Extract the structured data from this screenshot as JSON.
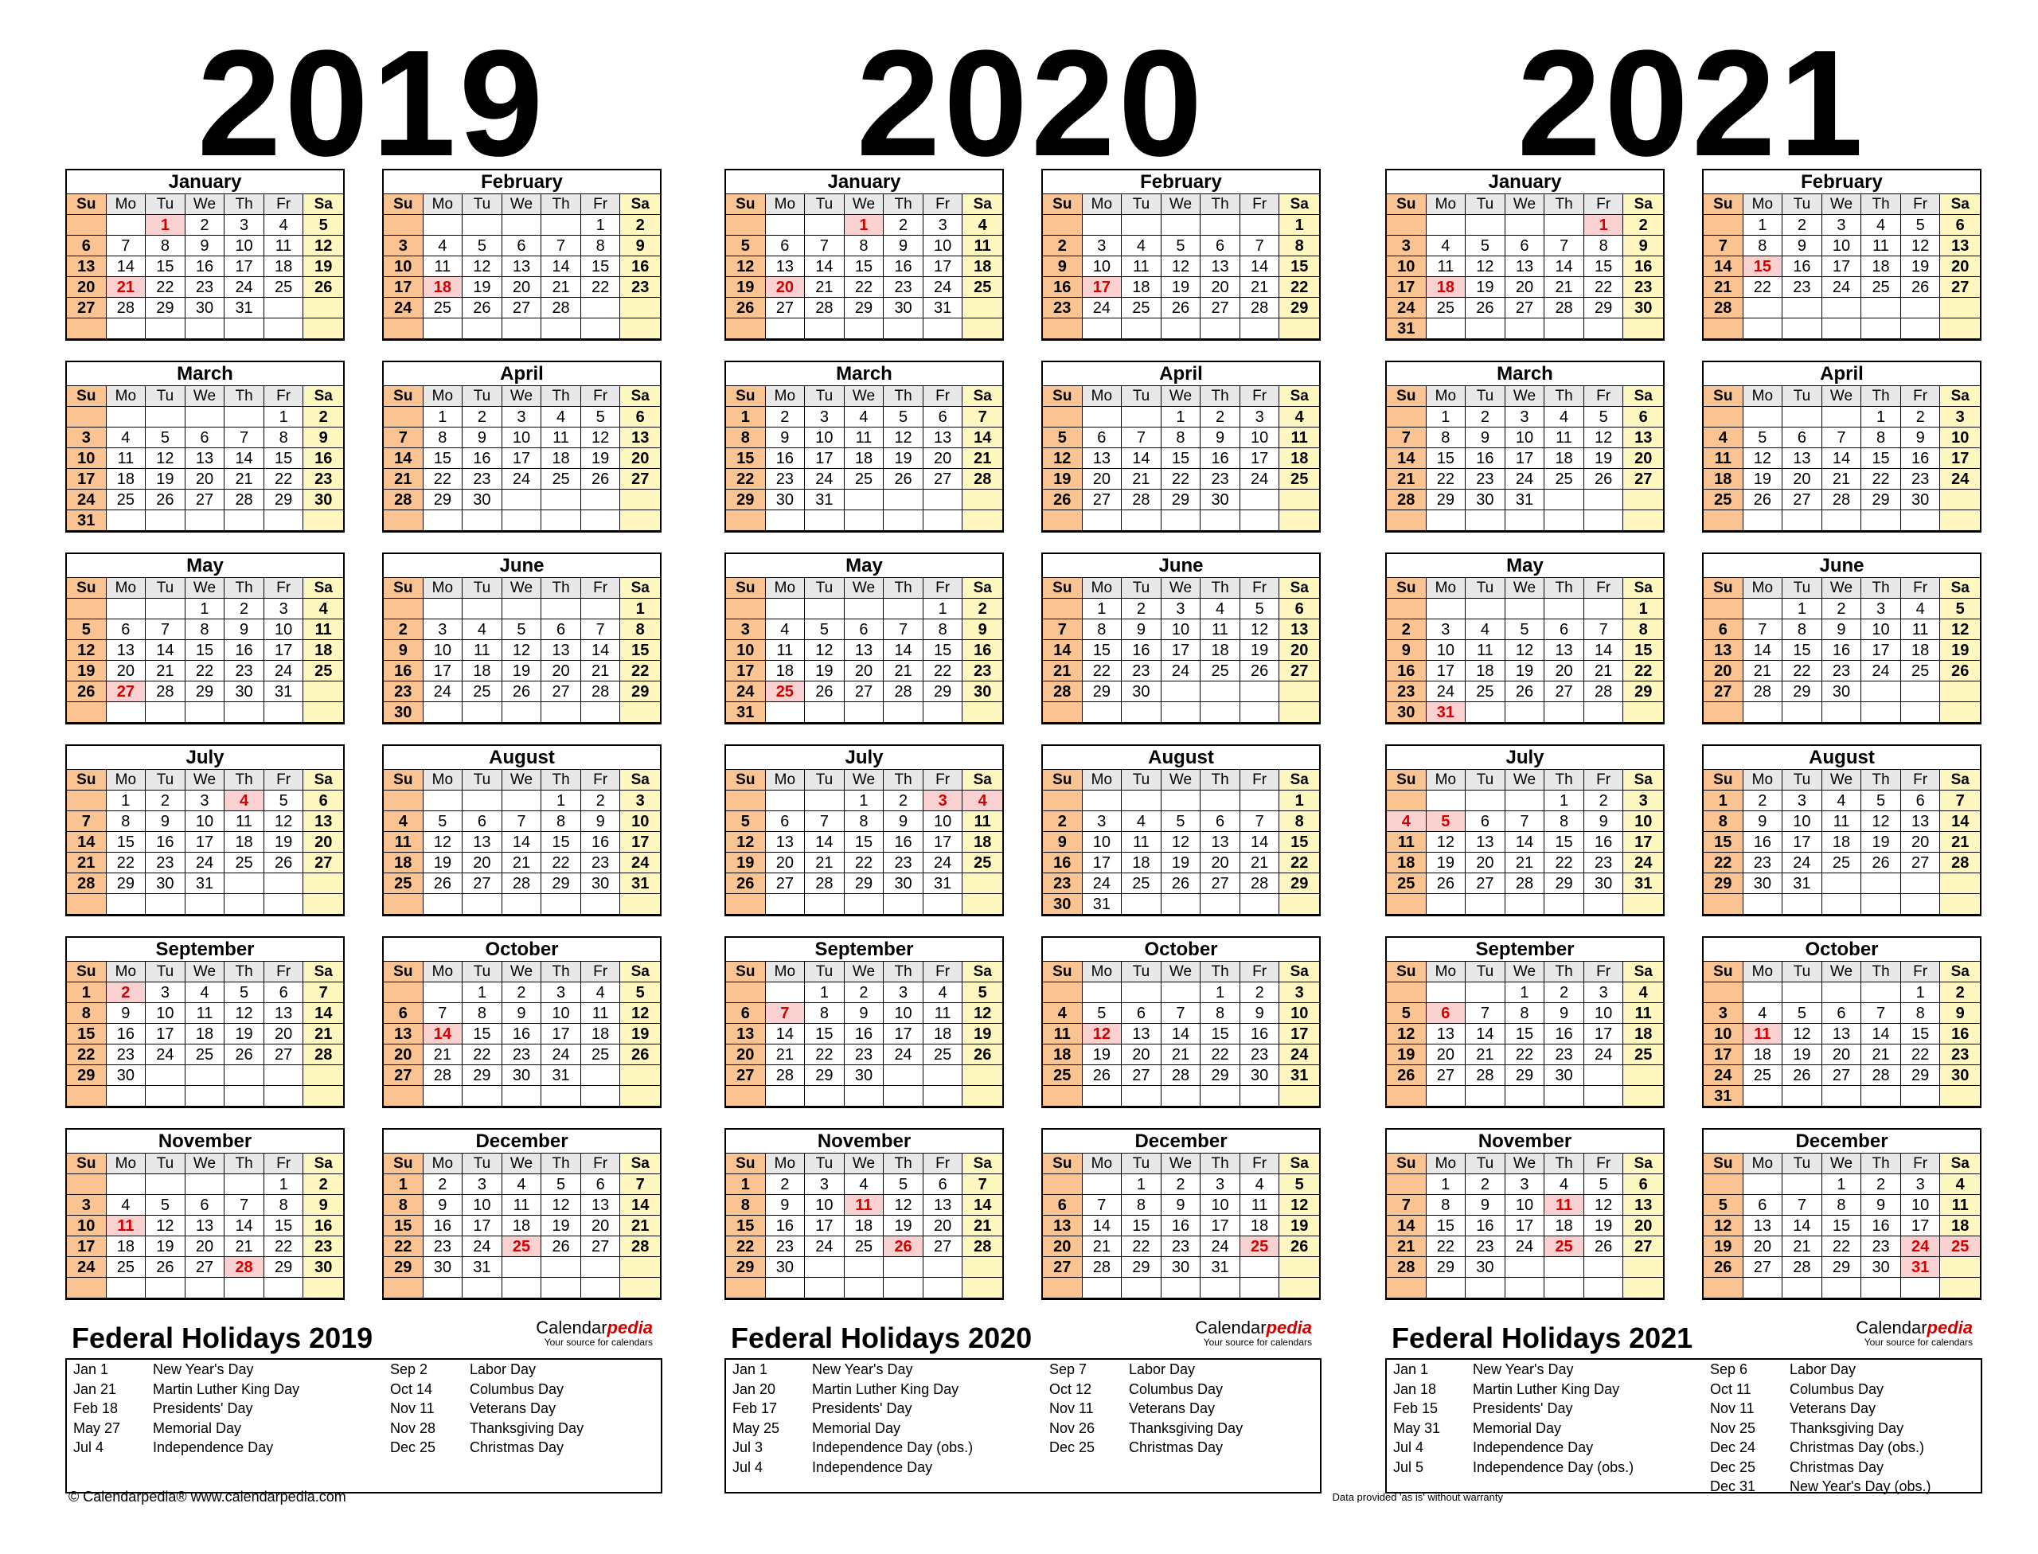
{
  "years": [
    {
      "year": "2019",
      "months": [
        {
          "name": "January",
          "start": 2,
          "days": 31,
          "holidays": [
            1,
            21
          ]
        },
        {
          "name": "February",
          "start": 5,
          "days": 28,
          "holidays": [
            18
          ]
        },
        {
          "name": "March",
          "start": 5,
          "days": 31,
          "holidays": []
        },
        {
          "name": "April",
          "start": 1,
          "days": 30,
          "holidays": []
        },
        {
          "name": "May",
          "start": 3,
          "days": 31,
          "holidays": [
            27
          ]
        },
        {
          "name": "June",
          "start": 6,
          "days": 30,
          "holidays": []
        },
        {
          "name": "July",
          "start": 1,
          "days": 31,
          "holidays": [
            4
          ]
        },
        {
          "name": "August",
          "start": 4,
          "days": 31,
          "holidays": []
        },
        {
          "name": "September",
          "start": 0,
          "days": 30,
          "holidays": [
            2
          ]
        },
        {
          "name": "October",
          "start": 2,
          "days": 31,
          "holidays": [
            14
          ]
        },
        {
          "name": "November",
          "start": 5,
          "days": 30,
          "holidays": [
            11,
            28
          ]
        },
        {
          "name": "December",
          "start": 0,
          "days": 31,
          "holidays": [
            25
          ]
        }
      ],
      "holiday_title": "Federal Holidays 2019",
      "holidays_left": [
        {
          "date": "Jan 1",
          "name": "New Year's Day"
        },
        {
          "date": "Jan 21",
          "name": "Martin Luther King Day"
        },
        {
          "date": "Feb 18",
          "name": "Presidents' Day"
        },
        {
          "date": "May 27",
          "name": "Memorial Day"
        },
        {
          "date": "Jul 4",
          "name": "Independence Day"
        }
      ],
      "holidays_right": [
        {
          "date": "Sep 2",
          "name": "Labor Day"
        },
        {
          "date": "Oct 14",
          "name": "Columbus Day"
        },
        {
          "date": "Nov 11",
          "name": "Veterans Day"
        },
        {
          "date": "Nov 28",
          "name": "Thanksgiving Day"
        },
        {
          "date": "Dec 25",
          "name": "Christmas Day"
        }
      ]
    },
    {
      "year": "2020",
      "months": [
        {
          "name": "January",
          "start": 3,
          "days": 31,
          "holidays": [
            1,
            20
          ]
        },
        {
          "name": "February",
          "start": 6,
          "days": 29,
          "holidays": [
            17
          ]
        },
        {
          "name": "March",
          "start": 0,
          "days": 31,
          "holidays": []
        },
        {
          "name": "April",
          "start": 3,
          "days": 30,
          "holidays": []
        },
        {
          "name": "May",
          "start": 5,
          "days": 31,
          "holidays": [
            25
          ]
        },
        {
          "name": "June",
          "start": 1,
          "days": 30,
          "holidays": []
        },
        {
          "name": "July",
          "start": 3,
          "days": 31,
          "holidays": [
            3,
            4
          ]
        },
        {
          "name": "August",
          "start": 6,
          "days": 31,
          "holidays": []
        },
        {
          "name": "September",
          "start": 2,
          "days": 30,
          "holidays": [
            7
          ]
        },
        {
          "name": "October",
          "start": 4,
          "days": 31,
          "holidays": [
            12
          ]
        },
        {
          "name": "November",
          "start": 0,
          "days": 30,
          "holidays": [
            11,
            26
          ]
        },
        {
          "name": "December",
          "start": 2,
          "days": 31,
          "holidays": [
            25
          ]
        }
      ],
      "holiday_title": "Federal Holidays 2020",
      "holidays_left": [
        {
          "date": "Jan 1",
          "name": "New Year's Day"
        },
        {
          "date": "Jan 20",
          "name": "Martin Luther King Day"
        },
        {
          "date": "Feb 17",
          "name": "Presidents' Day"
        },
        {
          "date": "May 25",
          "name": "Memorial Day"
        },
        {
          "date": "Jul 3",
          "name": "Independence Day (obs.)"
        },
        {
          "date": "Jul 4",
          "name": "Independence Day"
        }
      ],
      "holidays_right": [
        {
          "date": "Sep 7",
          "name": "Labor Day"
        },
        {
          "date": "Oct 12",
          "name": "Columbus Day"
        },
        {
          "date": "Nov 11",
          "name": "Veterans Day"
        },
        {
          "date": "Nov 26",
          "name": "Thanksgiving Day"
        },
        {
          "date": "Dec 25",
          "name": "Christmas Day"
        }
      ]
    },
    {
      "year": "2021",
      "months": [
        {
          "name": "January",
          "start": 5,
          "days": 31,
          "holidays": [
            1,
            18
          ]
        },
        {
          "name": "February",
          "start": 1,
          "days": 28,
          "holidays": [
            15
          ]
        },
        {
          "name": "March",
          "start": 1,
          "days": 31,
          "holidays": []
        },
        {
          "name": "April",
          "start": 4,
          "days": 30,
          "holidays": []
        },
        {
          "name": "May",
          "start": 6,
          "days": 31,
          "holidays": [
            31
          ]
        },
        {
          "name": "June",
          "start": 2,
          "days": 30,
          "holidays": []
        },
        {
          "name": "July",
          "start": 4,
          "days": 31,
          "holidays": [
            4,
            5
          ]
        },
        {
          "name": "August",
          "start": 0,
          "days": 31,
          "holidays": []
        },
        {
          "name": "September",
          "start": 3,
          "days": 30,
          "holidays": [
            6
          ]
        },
        {
          "name": "October",
          "start": 5,
          "days": 31,
          "holidays": [
            11
          ]
        },
        {
          "name": "November",
          "start": 1,
          "days": 30,
          "holidays": [
            11,
            25
          ]
        },
        {
          "name": "December",
          "start": 3,
          "days": 31,
          "holidays": [
            24,
            25,
            31
          ]
        }
      ],
      "holiday_title": "Federal Holidays 2021",
      "holidays_left": [
        {
          "date": "Jan 1",
          "name": "New Year's Day"
        },
        {
          "date": "Jan 18",
          "name": "Martin Luther King Day"
        },
        {
          "date": "Feb 15",
          "name": "Presidents' Day"
        },
        {
          "date": "May 31",
          "name": "Memorial Day"
        },
        {
          "date": "Jul 4",
          "name": "Independence Day"
        },
        {
          "date": "Jul 5",
          "name": "Independence Day (obs.)"
        }
      ],
      "holidays_right": [
        {
          "date": "Sep 6",
          "name": "Labor Day"
        },
        {
          "date": "Oct 11",
          "name": "Columbus Day"
        },
        {
          "date": "Nov 11",
          "name": "Veterans Day"
        },
        {
          "date": "Nov 25",
          "name": "Thanksgiving Day"
        },
        {
          "date": "Dec 24",
          "name": "Christmas Day (obs.)"
        },
        {
          "date": "Dec 25",
          "name": "Christmas Day"
        },
        {
          "date": "Dec 31",
          "name": "New Year's Day (obs.)"
        }
      ]
    }
  ],
  "weekdays": [
    "Su",
    "Mo",
    "Tu",
    "We",
    "Th",
    "Fr",
    "Sa"
  ],
  "brand": {
    "name_plain": "Calendar",
    "name_accent": "pedia",
    "tagline": "Your source for calendars"
  },
  "footer": {
    "copyright": "© Calendarpedia®   www.calendarpedia.com",
    "disclaimer": "Data provided 'as is' without warranty"
  },
  "colors": {
    "sunday": "#f9c392",
    "saturday": "#fff7c0",
    "holiday": "#f9d1d1",
    "holiday_text": "#d40000",
    "brand_accent": "#d40000"
  }
}
